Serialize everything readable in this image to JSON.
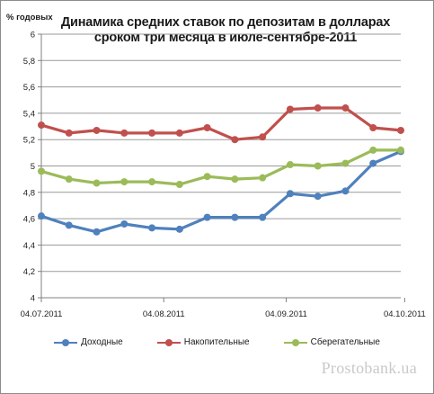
{
  "chart_data": {
    "type": "line",
    "title": "Динамика средних ставок по депозитам в долларах сроком три месяца в июле-сентябре-2011",
    "title_lines": [
      "Динамика средних ставок по депозитам в долларах",
      "сроком три месяца в июле-сентябре-2011"
    ],
    "ylabel": "% годовых",
    "xlabel": "",
    "ylim": [
      4,
      6
    ],
    "yticks": [
      "4",
      "4,2",
      "4,4",
      "4,6",
      "4,8",
      "5",
      "5,2",
      "5,4",
      "5,6",
      "5,8",
      "6"
    ],
    "x": [
      "04.07.2011",
      "11.07.2011",
      "18.07.2011",
      "25.07.2011",
      "01.08.2011",
      "08.08.2011",
      "15.08.2011",
      "22.08.2011",
      "29.08.2011",
      "05.09.2011",
      "12.09.2011",
      "19.09.2011",
      "26.09.2011",
      "03.10.2011"
    ],
    "xticks": [
      "04.07.2011",
      "04.08.2011",
      "04.09.2011",
      "04.10.2011"
    ],
    "grid": true,
    "legend_position": "bottom",
    "series": [
      {
        "name": "Доходные",
        "color": "#4f81bd",
        "values": [
          4.62,
          4.55,
          4.5,
          4.56,
          4.53,
          4.52,
          4.61,
          4.61,
          4.61,
          4.79,
          4.77,
          4.81,
          5.02,
          5.11
        ]
      },
      {
        "name": "Накопительные",
        "color": "#c0504d",
        "values": [
          5.31,
          5.25,
          5.27,
          5.25,
          5.25,
          5.25,
          5.29,
          5.2,
          5.22,
          5.43,
          5.44,
          5.44,
          5.29,
          5.27
        ]
      },
      {
        "name": "Сберегательные",
        "color": "#9bbb59",
        "values": [
          4.96,
          4.9,
          4.87,
          4.88,
          4.88,
          4.86,
          4.92,
          4.9,
          4.91,
          5.01,
          5.0,
          5.02,
          5.12,
          5.12
        ]
      }
    ]
  },
  "watermark": "Prostobank.ua"
}
